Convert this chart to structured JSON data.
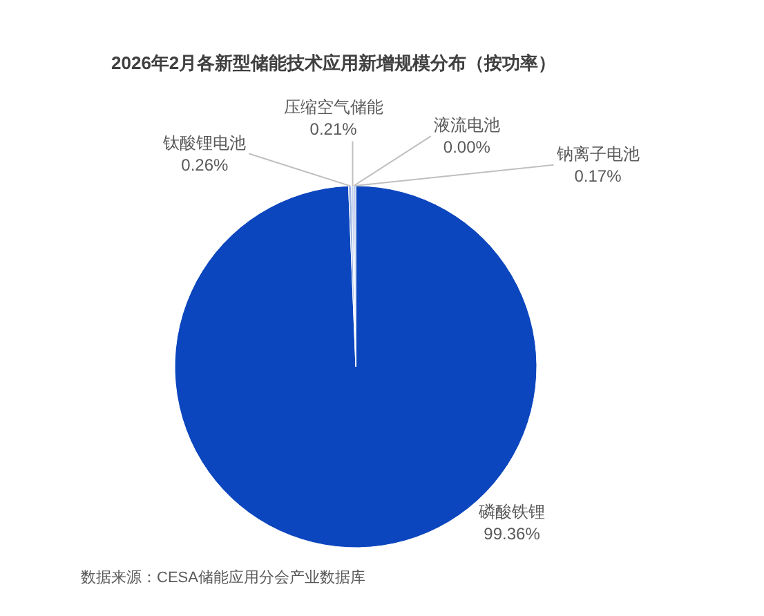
{
  "chart_data": {
    "type": "pie",
    "title": "2026年2月各新型储能技术应用新增规模分布（按功率）",
    "categories": [
      "磷酸铁锂",
      "钛酸锂电池",
      "压缩空气储能",
      "液流电池",
      "钠离子电池"
    ],
    "values": [
      99.36,
      0.26,
      0.21,
      0.0,
      0.17
    ],
    "colors": [
      "#0b46be",
      "#9db4e3",
      "#c0cfee",
      "#dbe3f5",
      "#aebfe8"
    ],
    "value_labels": [
      "99.36%",
      "0.26%",
      "0.21%",
      "0.00%",
      "0.17%"
    ],
    "annotations": [
      "数据来源：CESA储能应用分会产业数据库"
    ]
  }
}
